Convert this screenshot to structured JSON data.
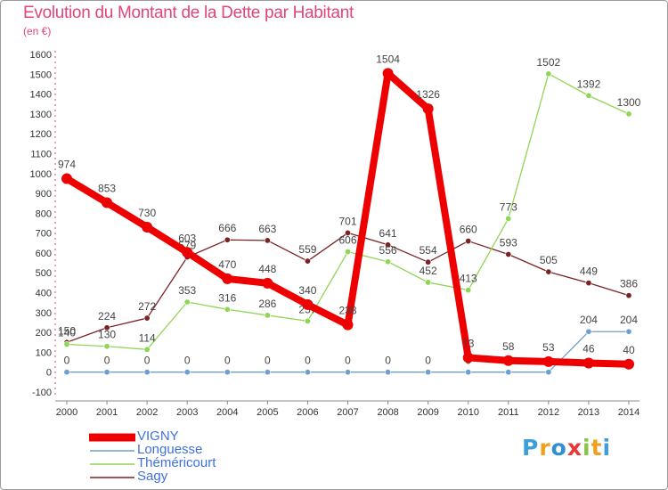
{
  "title": "Evolution du Montant de la Dette par Habitant",
  "unit": "(en €)",
  "logo": {
    "text": "Proxiti",
    "colors": [
      "#3aa0dc",
      "#f0a020",
      "#2f8fd0",
      "#e53935",
      "#8bc34a",
      "#f0a020",
      "#3aa0dc"
    ]
  },
  "chart_data": {
    "type": "line",
    "x": [
      2000,
      2001,
      2002,
      2003,
      2004,
      2005,
      2006,
      2007,
      2008,
      2009,
      2010,
      2011,
      2012,
      2013,
      2014
    ],
    "ylim": [
      -100,
      1600
    ],
    "yticks": [
      -100,
      0,
      100,
      200,
      300,
      400,
      500,
      600,
      700,
      800,
      900,
      1000,
      1100,
      1200,
      1300,
      1400,
      1500,
      1600
    ],
    "grid": false,
    "legend": "bottom-left",
    "series": [
      {
        "name": "Sagy",
        "color": "#7a2323",
        "values": [
          150,
          224,
          272,
          579,
          666,
          663,
          559,
          701,
          641,
          554,
          660,
          593,
          505,
          449,
          386
        ]
      },
      {
        "name": "Théméricourt",
        "color": "#8fd654",
        "values": [
          140,
          130,
          114,
          353,
          316,
          286,
          257,
          606,
          556,
          452,
          413,
          773,
          1502,
          1392,
          1300
        ]
      },
      {
        "name": "Longuesse",
        "color": "#6f9fcf",
        "values": [
          0,
          0,
          0,
          0,
          0,
          0,
          0,
          0,
          0,
          0,
          0,
          0,
          0,
          204,
          204
        ]
      },
      {
        "name": "VIGNY",
        "color": "#ee0000",
        "values": [
          974,
          853,
          730,
          603,
          470,
          448,
          340,
          238,
          1504,
          1326,
          73,
          58,
          53,
          46,
          40
        ]
      }
    ],
    "legend_order": [
      "VIGNY",
      "Longuesse",
      "Théméricourt",
      "Sagy"
    ]
  }
}
